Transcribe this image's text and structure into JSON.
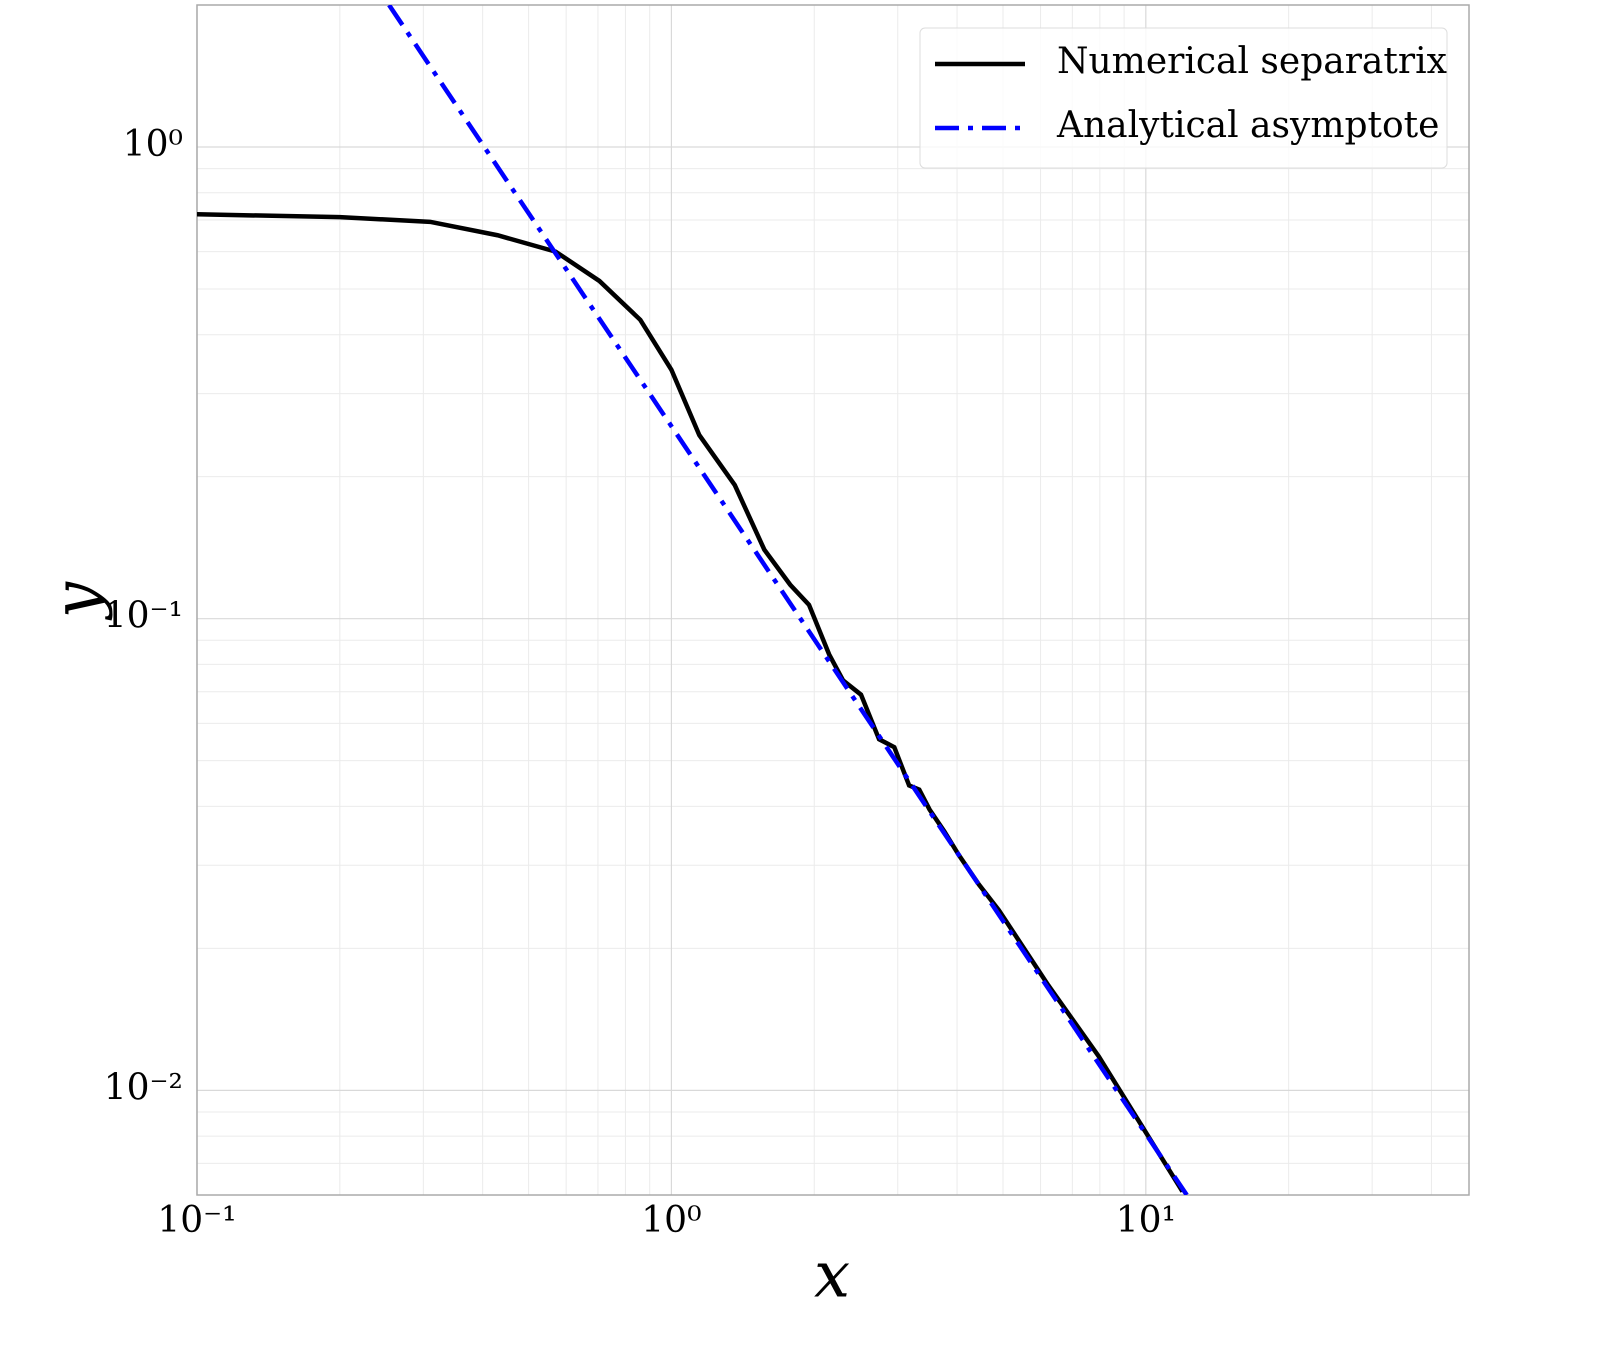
{
  "chart_data": {
    "type": "line",
    "x_label": "x",
    "y_label": "y",
    "log_x": true,
    "log_y": true,
    "grid": "both",
    "legend": "upper right",
    "xlim": [
      0.1,
      48
    ],
    "ylim": [
      0.006,
      2
    ],
    "xticks": [
      {
        "value": 0.1,
        "label": "10⁻¹"
      },
      {
        "value": 1,
        "label": "10⁰"
      },
      {
        "value": 10,
        "label": "10¹"
      }
    ],
    "yticks": [
      {
        "value": 0.01,
        "label": "10⁻²"
      },
      {
        "value": 0.1,
        "label": "10⁻¹"
      },
      {
        "value": 1,
        "label": "10⁰"
      }
    ],
    "series": [
      {
        "name": "Numerical separatrix",
        "color": "#000000",
        "style": "solid",
        "x": [
          0.1,
          0.2,
          0.31,
          0.43,
          0.57,
          0.705,
          0.86,
          1.0,
          1.145,
          1.36,
          1.57,
          1.78,
          1.95,
          2.15,
          2.3,
          2.51,
          2.74,
          2.95,
          3.17,
          3.33,
          3.5,
          3.76,
          4.03,
          4.45,
          4.9,
          6.23,
          7.96,
          11.95
        ],
        "values": [
          0.72,
          0.71,
          0.694,
          0.65,
          0.6,
          0.52,
          0.43,
          0.337,
          0.245,
          0.192,
          0.14,
          0.118,
          0.107,
          0.084,
          0.074,
          0.069,
          0.0555,
          0.0534,
          0.0443,
          0.0434,
          0.0394,
          0.0354,
          0.0316,
          0.0273,
          0.0241,
          0.0167,
          0.0118,
          0.0061
        ]
      },
      {
        "name": "Analytical asymptote",
        "color": "#0000ff",
        "style": "dashdot",
        "x": [
          0.254,
          12.2
        ],
        "values": [
          2,
          0.006
        ]
      }
    ]
  }
}
